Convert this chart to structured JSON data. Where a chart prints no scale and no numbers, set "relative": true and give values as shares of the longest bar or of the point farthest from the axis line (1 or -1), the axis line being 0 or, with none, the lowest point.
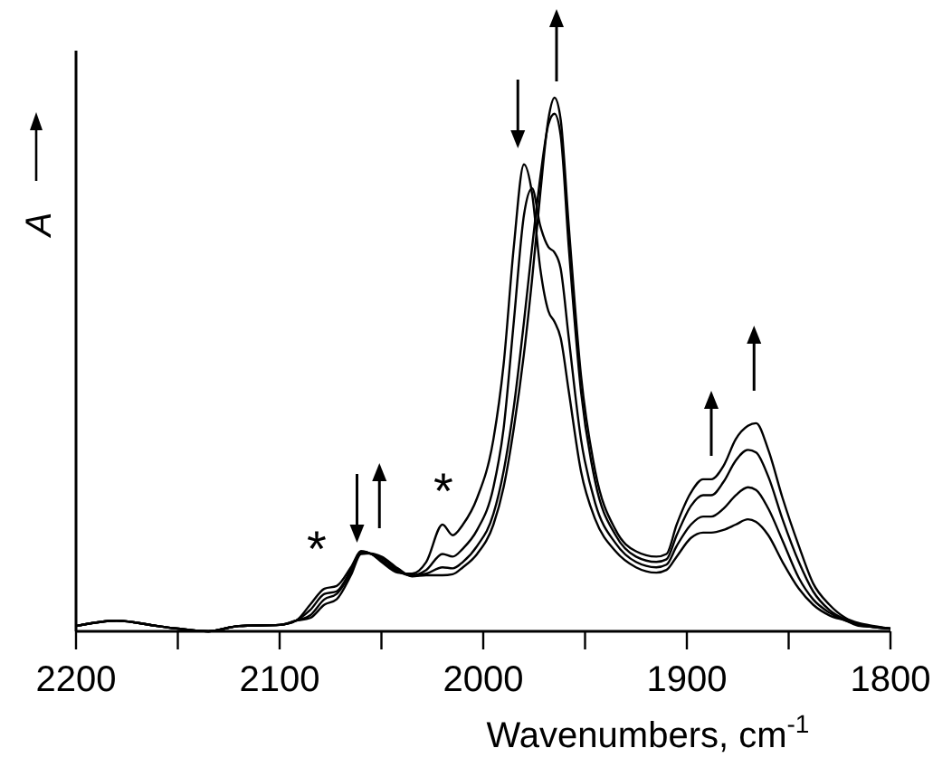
{
  "chart_data": {
    "type": "line",
    "relative": true,
    "xlabel": "Wavenumbers, cm$^{-1}$",
    "ylabel": "A",
    "xlim": [
      2200,
      1800
    ],
    "xticks": [
      2200,
      {
        "value": 2150,
        "label": null
      },
      2100,
      {
        "value": 2050,
        "label": null
      },
      2000,
      {
        "value": 1950,
        "label": null
      },
      1900,
      {
        "value": 1850,
        "label": null
      },
      1800
    ],
    "x": [
      2200,
      2180,
      2160,
      2150,
      2135,
      2120,
      2100,
      2092,
      2085,
      2078,
      2072,
      2065,
      2060,
      2055,
      2050,
      2042,
      2035,
      2028,
      2020,
      2015,
      2010,
      2003,
      1995,
      1990,
      1985,
      1980,
      1976,
      1972,
      1968,
      1965,
      1962,
      1958,
      1952,
      1945,
      1935,
      1925,
      1915,
      1910,
      1905,
      1898,
      1892,
      1888,
      1882,
      1876,
      1870,
      1866,
      1860,
      1853,
      1845,
      1838,
      1830,
      1822,
      1815,
      1808,
      1800
    ],
    "annotations": [
      "*",
      "*"
    ],
    "series": [
      {
        "color": "#000000",
        "values": [
          0.01,
          0.02,
          0.01,
          0.005,
          0,
          0.01,
          0.012,
          0.02,
          0.05,
          0.08,
          0.085,
          0.12,
          0.15,
          0.145,
          0.13,
          0.11,
          0.108,
          0.13,
          0.2,
          0.18,
          0.2,
          0.25,
          0.36,
          0.5,
          0.72,
          0.875,
          0.82,
          0.68,
          0.6,
          0.58,
          0.55,
          0.45,
          0.3,
          0.21,
          0.15,
          0.12,
          0.11,
          0.115,
          0.14,
          0.175,
          0.185,
          0.185,
          0.19,
          0.2,
          0.21,
          0.205,
          0.18,
          0.13,
          0.08,
          0.05,
          0.03,
          0.02,
          0.01,
          0.008,
          0.005
        ]
      },
      {
        "color": "#000000",
        "values": [
          0.01,
          0.02,
          0.01,
          0.005,
          0,
          0.01,
          0.012,
          0.02,
          0.04,
          0.07,
          0.075,
          0.115,
          0.15,
          0.145,
          0.133,
          0.112,
          0.105,
          0.115,
          0.145,
          0.14,
          0.155,
          0.19,
          0.27,
          0.38,
          0.58,
          0.78,
          0.83,
          0.76,
          0.72,
          0.71,
          0.68,
          0.55,
          0.36,
          0.24,
          0.165,
          0.13,
          0.12,
          0.125,
          0.16,
          0.2,
          0.215,
          0.215,
          0.23,
          0.255,
          0.27,
          0.265,
          0.23,
          0.17,
          0.1,
          0.06,
          0.035,
          0.02,
          0.012,
          0.008,
          0.005
        ]
      },
      {
        "color": "#000000",
        "values": [
          0.01,
          0.02,
          0.01,
          0.005,
          0,
          0.01,
          0.012,
          0.02,
          0.03,
          0.06,
          0.07,
          0.11,
          0.148,
          0.145,
          0.137,
          0.115,
          0.104,
          0.108,
          0.12,
          0.118,
          0.13,
          0.16,
          0.22,
          0.3,
          0.42,
          0.58,
          0.72,
          0.85,
          0.95,
          0.97,
          0.93,
          0.72,
          0.45,
          0.28,
          0.18,
          0.14,
          0.13,
          0.135,
          0.18,
          0.235,
          0.255,
          0.255,
          0.28,
          0.32,
          0.34,
          0.335,
          0.29,
          0.21,
          0.13,
          0.075,
          0.04,
          0.022,
          0.013,
          0.008,
          0.005
        ]
      },
      {
        "color": "#000000",
        "values": [
          0.01,
          0.02,
          0.01,
          0.005,
          0,
          0.01,
          0.012,
          0.02,
          0.025,
          0.05,
          0.06,
          0.105,
          0.145,
          0.146,
          0.14,
          0.118,
          0.103,
          0.105,
          0.105,
          0.107,
          0.12,
          0.145,
          0.2,
          0.27,
          0.38,
          0.52,
          0.66,
          0.82,
          0.96,
          1.0,
          0.96,
          0.76,
          0.48,
          0.3,
          0.19,
          0.15,
          0.14,
          0.145,
          0.2,
          0.26,
          0.285,
          0.285,
          0.31,
          0.36,
          0.385,
          0.39,
          0.34,
          0.25,
          0.16,
          0.09,
          0.05,
          0.025,
          0.015,
          0.01,
          0.005
        ]
      }
    ]
  }
}
